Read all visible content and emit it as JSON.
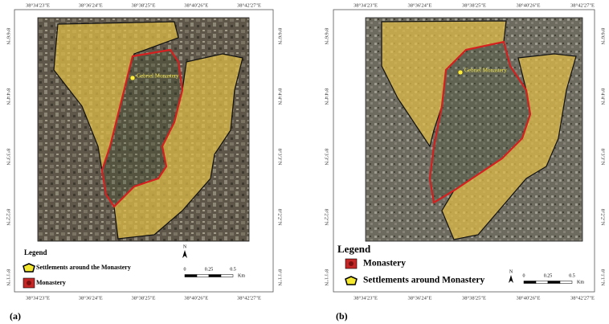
{
  "panels": [
    {
      "caption": "(a)",
      "top_labels": [
        "38°34'23\"E",
        "38°36'24\"E",
        "38°38'25\"E",
        "38°40'26\"E",
        "38°42'27\"E"
      ],
      "bottom_labels": [
        "38°34'23\"E",
        "38°36'24\"E",
        "38°38'25\"E",
        "38°40'26\"E",
        "38°42'27\"E"
      ],
      "left_labels": [
        "8°6'6\"N",
        "8°4'4\"N",
        "8°3'3\"N",
        "8°2'2\"N",
        "8°1'1\"N"
      ],
      "right_labels": [
        "8°6'6\"N",
        "8°4'4\"N",
        "8°3'3\"N",
        "8°2'2\"N",
        "8°1'1\"N"
      ],
      "map_label": "Gebriel Monastery",
      "legend": {
        "title": "Legend",
        "items": [
          "Settlements around the Monastery",
          "Monastery"
        ]
      },
      "north": "N",
      "scale": [
        "0",
        "0.25",
        "0.5"
      ],
      "scale_unit": "Km"
    },
    {
      "caption": "(b)",
      "top_labels": [
        "38°34'23\"E",
        "38°36'24\"E",
        "38°38'25\"E",
        "38°40'26\"E",
        "38°42'27\"E"
      ],
      "bottom_labels": [
        "38°34'23\"E",
        "38°36'24\"E",
        "38°38'25\"E",
        "38°40'26\"E",
        "38°42'27\"E"
      ],
      "left_labels": [
        "8°6'6\"N",
        "8°4'4\"N",
        "8°3'3\"N",
        "8°2'2\"N",
        "8°1'1\"N"
      ],
      "right_labels": [
        "8°6'6\"N",
        "8°4'4\"N",
        "8°3'3\"N",
        "8°2'2\"N",
        "8°1'1\"N"
      ],
      "map_label": "Gebriel Monastery",
      "legend": {
        "title": "Legend",
        "items": [
          "Monastery",
          "Settlements around Monastery"
        ]
      },
      "north": "N",
      "scale": [
        "0",
        "0.25",
        "0.5"
      ],
      "scale_unit": "Km"
    }
  ]
}
